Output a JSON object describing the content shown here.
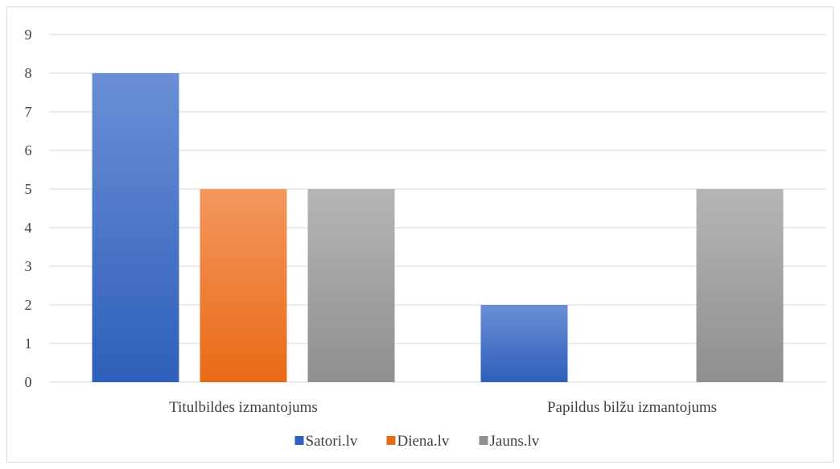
{
  "chart_data": {
    "type": "bar",
    "title": "",
    "xlabel": "",
    "ylabel": "",
    "categories": [
      "Titulbildes izmantojums",
      "Papildus bilžu izmantojums"
    ],
    "series": [
      {
        "name": "Satori.lv",
        "values": [
          8,
          2
        ]
      },
      {
        "name": "Diena.lv",
        "values": [
          5,
          0
        ]
      },
      {
        "name": "Jauns.lv",
        "values": [
          5,
          5
        ]
      }
    ],
    "ylim": [
      0,
      9
    ],
    "yticks": [
      "0",
      "1",
      "2",
      "3",
      "4",
      "5",
      "6",
      "7",
      "8",
      "9"
    ],
    "grid": true,
    "legend_position": "bottom"
  },
  "colors": {
    "series_top": [
      "#6a8fd6",
      "#f4975e",
      "#b5b5b5"
    ],
    "series_bottom": [
      "#2e5fba",
      "#e86a16",
      "#8f8f8f"
    ],
    "grid": "#d9d9d9",
    "text": "#404040"
  }
}
